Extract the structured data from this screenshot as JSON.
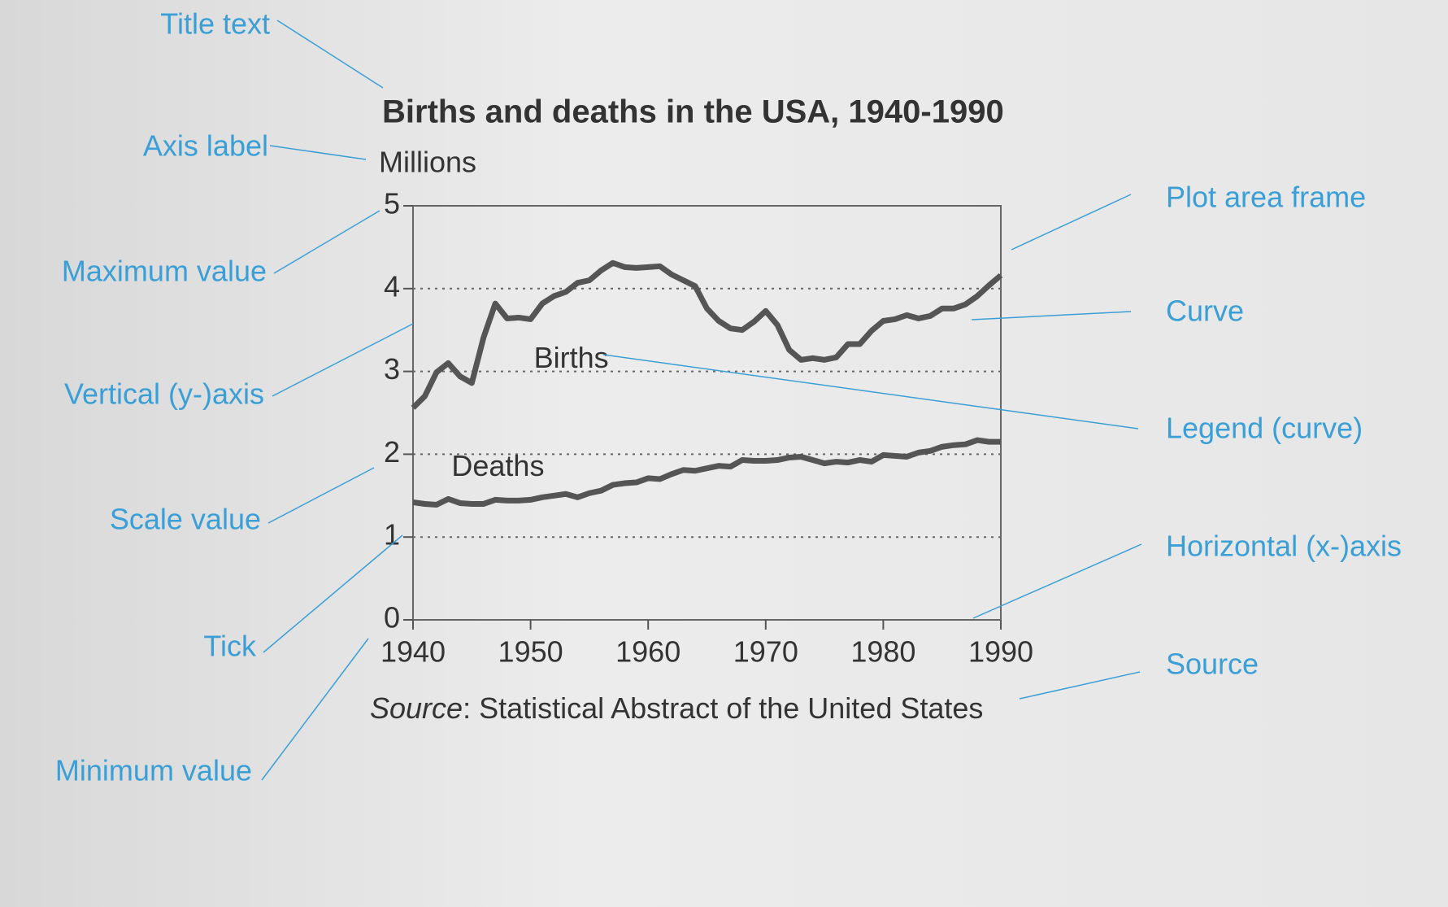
{
  "chart_data": {
    "type": "line",
    "title": "Births and deaths in the USA, 1940-1990",
    "y_label": "Millions",
    "source_prefix": "Source",
    "source": ": Statistical Abstract of the United States",
    "x": [
      1940,
      1941,
      1942,
      1943,
      1944,
      1945,
      1946,
      1947,
      1948,
      1949,
      1950,
      1951,
      1952,
      1953,
      1954,
      1955,
      1956,
      1957,
      1958,
      1959,
      1960,
      1961,
      1962,
      1963,
      1964,
      1965,
      1966,
      1967,
      1968,
      1969,
      1970,
      1971,
      1972,
      1973,
      1974,
      1975,
      1976,
      1977,
      1978,
      1979,
      1980,
      1981,
      1982,
      1983,
      1984,
      1985,
      1986,
      1987,
      1988,
      1989,
      1990
    ],
    "series": [
      {
        "name": "Births",
        "color": "#555555",
        "values": [
          2.56,
          2.7,
          2.99,
          3.1,
          2.94,
          2.86,
          3.41,
          3.82,
          3.64,
          3.65,
          3.63,
          3.82,
          3.91,
          3.96,
          4.07,
          4.1,
          4.22,
          4.31,
          4.26,
          4.25,
          4.26,
          4.27,
          4.17,
          4.1,
          4.03,
          3.76,
          3.61,
          3.52,
          3.5,
          3.6,
          3.73,
          3.56,
          3.26,
          3.14,
          3.16,
          3.14,
          3.17,
          3.33,
          3.33,
          3.49,
          3.61,
          3.63,
          3.68,
          3.64,
          3.67,
          3.76,
          3.76,
          3.81,
          3.91,
          4.04,
          4.16
        ]
      },
      {
        "name": "Deaths",
        "color": "#555555",
        "values": [
          1.42,
          1.4,
          1.39,
          1.46,
          1.41,
          1.4,
          1.4,
          1.45,
          1.44,
          1.44,
          1.45,
          1.48,
          1.5,
          1.52,
          1.48,
          1.53,
          1.56,
          1.63,
          1.65,
          1.66,
          1.71,
          1.7,
          1.76,
          1.81,
          1.8,
          1.83,
          1.86,
          1.85,
          1.93,
          1.92,
          1.92,
          1.93,
          1.96,
          1.97,
          1.93,
          1.89,
          1.91,
          1.9,
          1.93,
          1.91,
          1.99,
          1.98,
          1.97,
          2.02,
          2.04,
          2.09,
          2.11,
          2.12,
          2.17,
          2.15,
          2.15
        ]
      }
    ],
    "xlim": [
      1940,
      1990
    ],
    "xticks": [
      1940,
      1950,
      1960,
      1970,
      1980,
      1990
    ],
    "ylim": [
      0,
      5
    ],
    "yticks": [
      0,
      1,
      2,
      3,
      4,
      5
    ],
    "grid": true,
    "annotations": [
      "Title text",
      "Axis label",
      "Maximum value",
      "Vertical (y-)axis",
      "Scale value",
      "Tick",
      "Minimum value",
      "Plot area frame",
      "Curve",
      "Legend (curve)",
      "Horizontal (x-)axis",
      "Source"
    ],
    "annotation_color": "#3a9fd6"
  }
}
